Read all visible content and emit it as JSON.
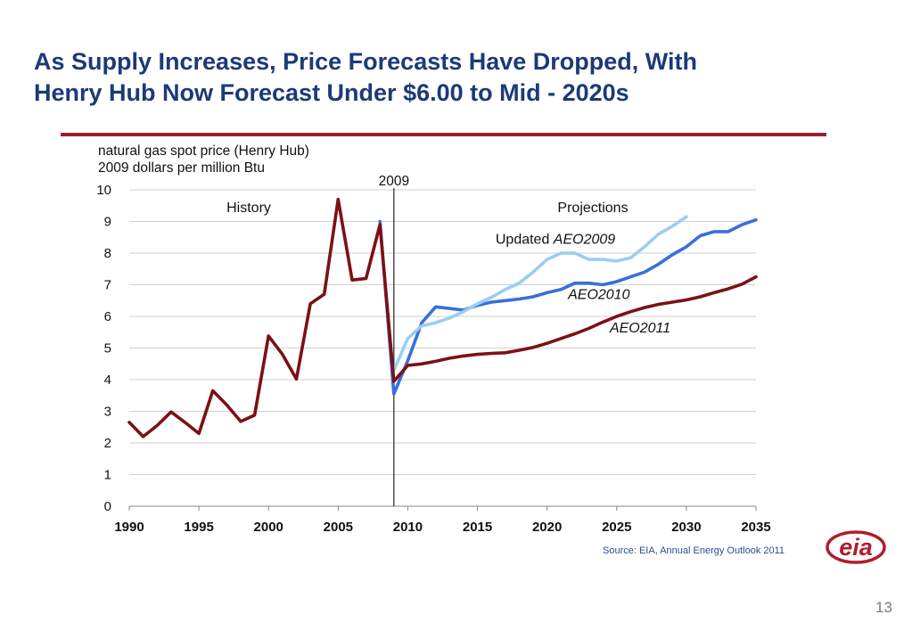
{
  "slide": {
    "title_line1": "As Supply Increases, Price Forecasts Have Dropped, With",
    "title_line2": "Henry Hub Now Forecast Under $6.00 to Mid - 2020s",
    "source": "Source: EIA, Annual Energy Outlook 2011",
    "page_number": "13",
    "logo_text": "eia",
    "colors": {
      "title": "#1b3a78",
      "rule": "#9b1c31",
      "logo": "#b11c2c"
    }
  },
  "chart_data": {
    "type": "line",
    "title_line1": "natural gas spot price (Henry Hub)",
    "title_line2": "2009 dollars per million Btu",
    "xlim": [
      1990,
      2035
    ],
    "ylim": [
      0,
      10
    ],
    "x_ticks": [
      1990,
      1995,
      2000,
      2005,
      2010,
      2015,
      2020,
      2025,
      2030,
      2035
    ],
    "y_ticks": [
      0,
      1,
      2,
      3,
      4,
      5,
      6,
      7,
      8,
      9,
      10
    ],
    "grid": "horizontal",
    "divider": {
      "x": 2009,
      "label": "2009"
    },
    "region_labels": {
      "history": "History",
      "projections": "Projections"
    },
    "series": [
      {
        "name": "AEO2010",
        "label_prefix": "",
        "label": "AEO2010",
        "color": "#3a6fd8",
        "label_pos": [
          2021.5,
          6.55
        ],
        "points": [
          [
            2008,
            9.0
          ],
          [
            2009,
            3.55
          ],
          [
            2010,
            4.6
          ],
          [
            2011,
            5.8
          ],
          [
            2012,
            6.3
          ],
          [
            2013,
            6.25
          ],
          [
            2014,
            6.2
          ],
          [
            2015,
            6.35
          ],
          [
            2016,
            6.45
          ],
          [
            2017,
            6.5
          ],
          [
            2018,
            6.55
          ],
          [
            2019,
            6.62
          ],
          [
            2020,
            6.75
          ],
          [
            2021,
            6.85
          ],
          [
            2022,
            7.05
          ],
          [
            2023,
            7.05
          ],
          [
            2024,
            7.0
          ],
          [
            2025,
            7.1
          ],
          [
            2026,
            7.25
          ],
          [
            2027,
            7.4
          ],
          [
            2028,
            7.65
          ],
          [
            2029,
            7.95
          ],
          [
            2030,
            8.2
          ],
          [
            2031,
            8.55
          ],
          [
            2032,
            8.68
          ],
          [
            2033,
            8.68
          ],
          [
            2034,
            8.9
          ],
          [
            2035,
            9.05
          ]
        ]
      },
      {
        "name": "Updated AEO2009",
        "label_prefix": "Updated",
        "label": "AEO2009",
        "color": "#9ccdf2",
        "label_pos": [
          2016.3,
          8.3
        ],
        "points": [
          [
            2009,
            4.3
          ],
          [
            2010,
            5.3
          ],
          [
            2011,
            5.7
          ],
          [
            2012,
            5.8
          ],
          [
            2013,
            5.95
          ],
          [
            2014,
            6.15
          ],
          [
            2015,
            6.4
          ],
          [
            2016,
            6.6
          ],
          [
            2017,
            6.85
          ],
          [
            2018,
            7.05
          ],
          [
            2019,
            7.4
          ],
          [
            2020,
            7.8
          ],
          [
            2021,
            8.0
          ],
          [
            2022,
            8.0
          ],
          [
            2023,
            7.8
          ],
          [
            2024,
            7.8
          ],
          [
            2025,
            7.75
          ],
          [
            2026,
            7.85
          ],
          [
            2027,
            8.2
          ],
          [
            2028,
            8.6
          ],
          [
            2029,
            8.85
          ],
          [
            2030,
            9.15
          ]
        ]
      },
      {
        "name": "AEO2011",
        "label_prefix": "",
        "label": "AEO2011",
        "color": "#7b1115",
        "label_pos": [
          2024.5,
          5.5
        ],
        "points": [
          [
            1990,
            2.65
          ],
          [
            1991,
            2.2
          ],
          [
            1992,
            2.55
          ],
          [
            1993,
            2.98
          ],
          [
            1994,
            2.65
          ],
          [
            1995,
            2.3
          ],
          [
            1996,
            3.65
          ],
          [
            1997,
            3.2
          ],
          [
            1998,
            2.68
          ],
          [
            1999,
            2.88
          ],
          [
            2000,
            5.38
          ],
          [
            2001,
            4.8
          ],
          [
            2002,
            4.02
          ],
          [
            2003,
            6.4
          ],
          [
            2004,
            6.7
          ],
          [
            2005,
            9.7
          ],
          [
            2006,
            7.15
          ],
          [
            2007,
            7.2
          ],
          [
            2008,
            8.9
          ],
          [
            2009,
            3.95
          ],
          [
            2010,
            4.45
          ],
          [
            2011,
            4.5
          ],
          [
            2012,
            4.58
          ],
          [
            2013,
            4.68
          ],
          [
            2014,
            4.75
          ],
          [
            2015,
            4.8
          ],
          [
            2016,
            4.83
          ],
          [
            2017,
            4.85
          ],
          [
            2018,
            4.93
          ],
          [
            2019,
            5.02
          ],
          [
            2020,
            5.15
          ],
          [
            2021,
            5.3
          ],
          [
            2022,
            5.45
          ],
          [
            2023,
            5.62
          ],
          [
            2024,
            5.82
          ],
          [
            2025,
            6.0
          ],
          [
            2026,
            6.15
          ],
          [
            2027,
            6.28
          ],
          [
            2028,
            6.38
          ],
          [
            2029,
            6.45
          ],
          [
            2030,
            6.52
          ],
          [
            2031,
            6.62
          ],
          [
            2032,
            6.75
          ],
          [
            2033,
            6.87
          ],
          [
            2034,
            7.02
          ],
          [
            2035,
            7.25
          ]
        ]
      }
    ]
  }
}
